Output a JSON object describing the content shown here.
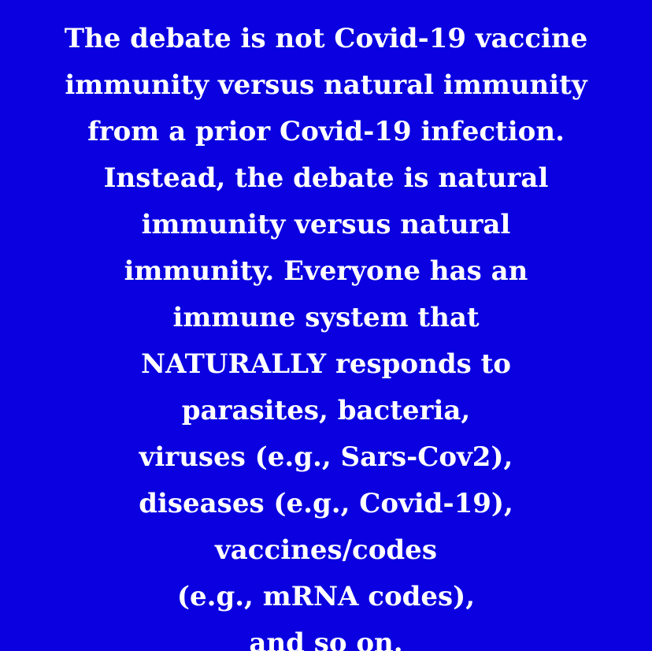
{
  "background_color": "#0a00e0",
  "text_color": "#ffffff",
  "lines": [
    "The debate is not Covid-19 vaccine",
    "immunity versus natural immunity",
    "from a prior Covid-19 infection.",
    "Instead, the debate is natural",
    "immunity versus natural",
    "immunity. Everyone has an",
    "immune system that",
    "NATURALLY responds to",
    "parasites, bacteria,",
    "viruses (e.g., Sars-Cov2),",
    "diseases (e.g., Covid-19),",
    "vaccines/codes",
    "(e.g., mRNA codes),",
    "and so on."
  ]
}
